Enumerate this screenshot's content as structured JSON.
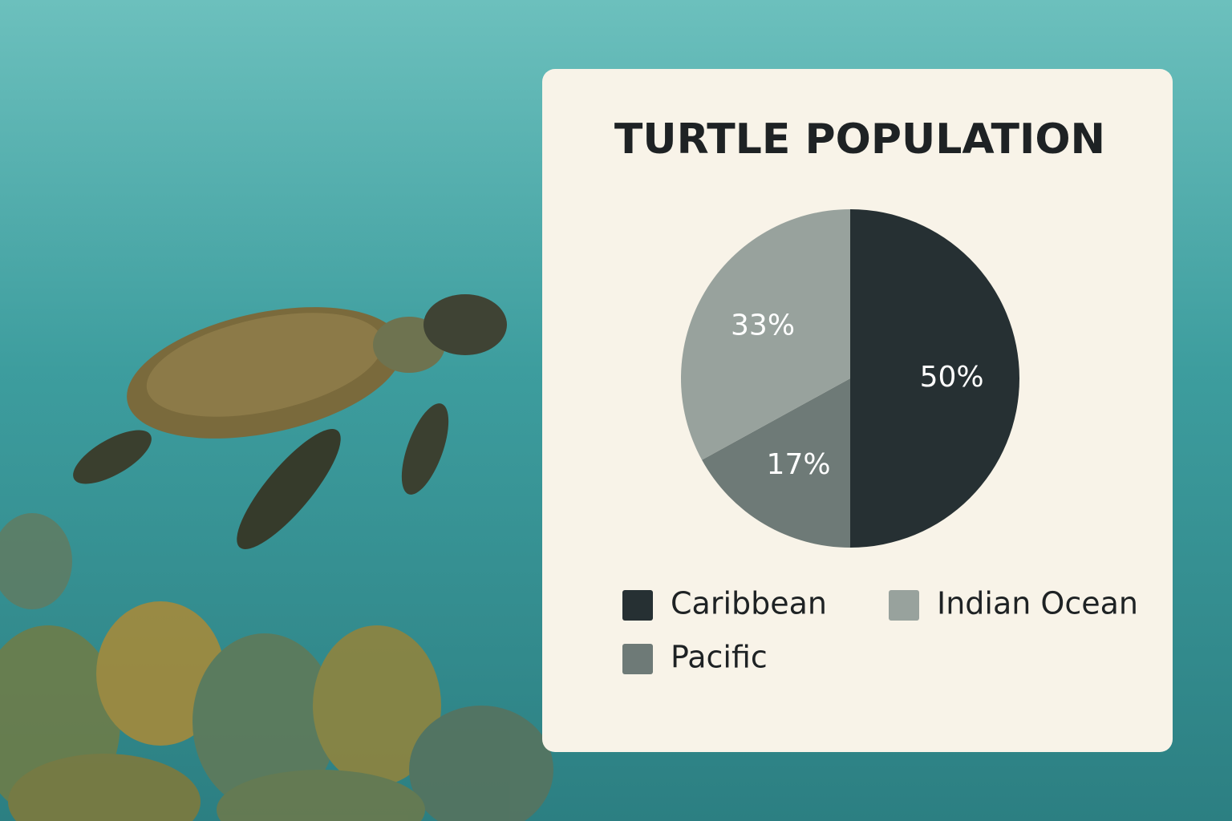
{
  "chart_data": {
    "type": "pie",
    "title": "TURTLE POPULATION",
    "categories": [
      "Caribbean",
      "Pacific",
      "Indian Ocean"
    ],
    "values": [
      50,
      17,
      33
    ],
    "value_labels": [
      "50%",
      "17%",
      "33%"
    ],
    "colors": [
      "#263033",
      "#6e7a77",
      "#98a29d"
    ]
  }
}
